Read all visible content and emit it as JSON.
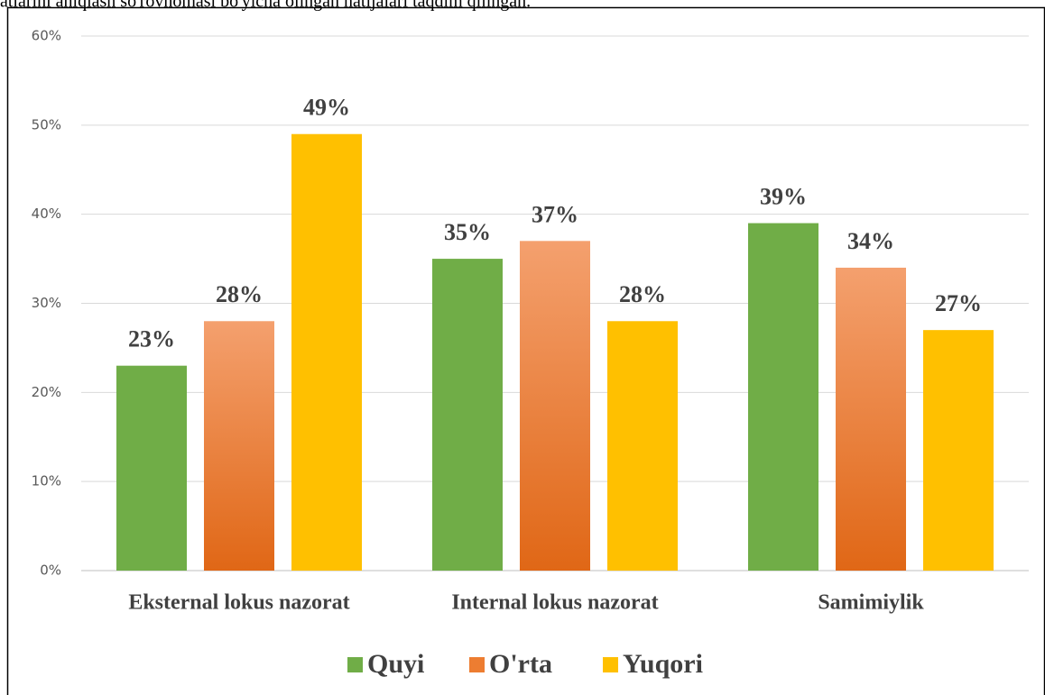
{
  "chart_data": {
    "type": "bar",
    "annotations": [
      "atlarini aniqlash so'rovnomasi bo'yicha olingan natijalari taqdim qilingan."
    ],
    "categories": [
      "Eksternal lokus nazorat",
      "Internal lokus nazorat",
      "Samimiylik"
    ],
    "series": [
      {
        "name": "Quyi",
        "color": "#70ad47",
        "values": [
          23,
          35,
          39
        ],
        "value_labels": [
          "23%",
          "35%",
          "39%"
        ]
      },
      {
        "name": "O'rta",
        "color": "#ed7d31",
        "values": [
          28,
          37,
          34
        ],
        "value_labels": [
          "28%",
          "37%",
          "34%"
        ]
      },
      {
        "name": "Yuqori",
        "color": "#ffc000",
        "values": [
          49,
          28,
          27
        ],
        "value_labels": [
          "49%",
          "28%",
          "27%"
        ]
      }
    ],
    "ylim": [
      0,
      60
    ],
    "yticks": [
      {
        "value": 0,
        "label": "0%"
      },
      {
        "value": 10,
        "label": "10%"
      },
      {
        "value": 20,
        "label": "20%"
      },
      {
        "value": 30,
        "label": "30%"
      },
      {
        "value": 40,
        "label": "40%"
      },
      {
        "value": 50,
        "label": "50%"
      },
      {
        "value": 60,
        "label": "60%"
      }
    ],
    "grid": true,
    "legend": "bottom"
  }
}
